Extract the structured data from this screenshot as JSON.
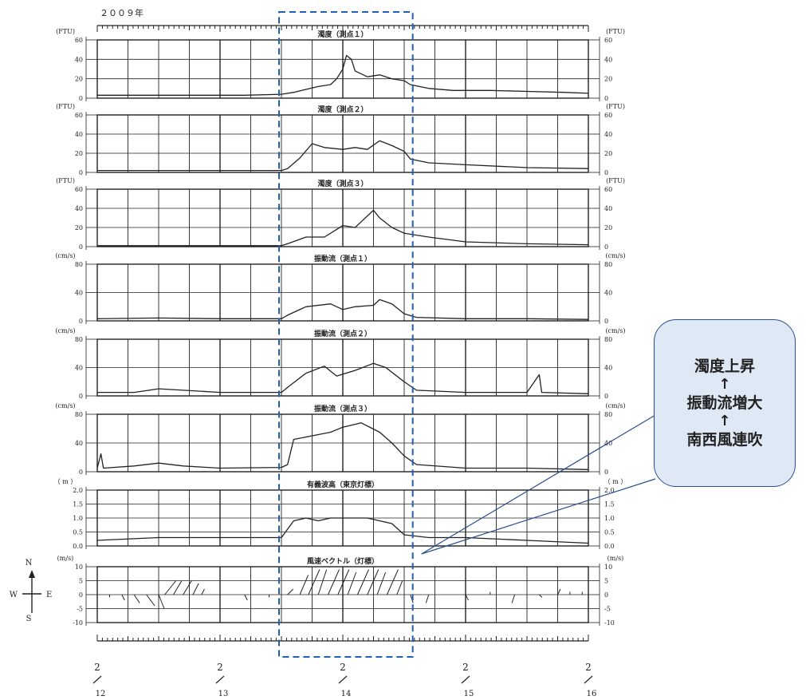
{
  "year_label": "２００９年",
  "chart_data": {
    "type": "line",
    "x_range": [
      0,
      4
    ],
    "x_ticks": [
      {
        "x": 0,
        "month": "2",
        "day": "12"
      },
      {
        "x": 1,
        "month": "2",
        "day": "13"
      },
      {
        "x": 2,
        "month": "2",
        "day": "14"
      },
      {
        "x": 3,
        "month": "2",
        "day": "15"
      },
      {
        "x": 4,
        "month": "2",
        "day": "16"
      }
    ],
    "panels": [
      {
        "title": "濁度（測点１）",
        "unit_left": "(FTU)",
        "unit_right": "(FTU)",
        "ylim": [
          0,
          60
        ],
        "yticks": [
          "0",
          "20",
          "40",
          "60"
        ],
        "series": [
          [
            0,
            3
          ],
          [
            0.3,
            3
          ],
          [
            0.6,
            3
          ],
          [
            0.9,
            3
          ],
          [
            1.2,
            3
          ],
          [
            1.5,
            4
          ],
          [
            1.6,
            6
          ],
          [
            1.8,
            12
          ],
          [
            1.9,
            14
          ],
          [
            1.95,
            20
          ],
          [
            2.0,
            30
          ],
          [
            2.03,
            44
          ],
          [
            2.07,
            40
          ],
          [
            2.1,
            28
          ],
          [
            2.2,
            22
          ],
          [
            2.3,
            24
          ],
          [
            2.4,
            20
          ],
          [
            2.5,
            18
          ],
          [
            2.55,
            14
          ],
          [
            2.7,
            10
          ],
          [
            2.9,
            8
          ],
          [
            3.2,
            8
          ],
          [
            3.5,
            7
          ],
          [
            3.8,
            6
          ],
          [
            4.0,
            5
          ]
        ]
      },
      {
        "title": "濁度（測点２）",
        "unit_left": "(FTU)",
        "unit_right": "(FTU)",
        "ylim": [
          0,
          60
        ],
        "yticks": [
          "0",
          "20",
          "40",
          "60"
        ],
        "series": [
          [
            0,
            2
          ],
          [
            0.5,
            2
          ],
          [
            1.0,
            2
          ],
          [
            1.5,
            2
          ],
          [
            1.55,
            4
          ],
          [
            1.65,
            15
          ],
          [
            1.75,
            30
          ],
          [
            1.85,
            26
          ],
          [
            2.0,
            24
          ],
          [
            2.1,
            26
          ],
          [
            2.2,
            24
          ],
          [
            2.3,
            33
          ],
          [
            2.4,
            28
          ],
          [
            2.5,
            22
          ],
          [
            2.55,
            14
          ],
          [
            2.7,
            10
          ],
          [
            3.0,
            8
          ],
          [
            3.5,
            5
          ],
          [
            4.0,
            4
          ]
        ]
      },
      {
        "title": "濁度（測点３）",
        "unit_left": "(FTU)",
        "unit_right": "(FTU)",
        "ylim": [
          0,
          60
        ],
        "yticks": [
          "0",
          "20",
          "40",
          "60"
        ],
        "series": [
          [
            0,
            1
          ],
          [
            0.5,
            1
          ],
          [
            1.0,
            1
          ],
          [
            1.5,
            1
          ],
          [
            1.55,
            3
          ],
          [
            1.7,
            10
          ],
          [
            1.85,
            10
          ],
          [
            1.95,
            18
          ],
          [
            2.0,
            22
          ],
          [
            2.1,
            20
          ],
          [
            2.15,
            26
          ],
          [
            2.25,
            38
          ],
          [
            2.3,
            30
          ],
          [
            2.4,
            20
          ],
          [
            2.5,
            14
          ],
          [
            2.7,
            10
          ],
          [
            3.0,
            5
          ],
          [
            3.5,
            3
          ],
          [
            4.0,
            2
          ]
        ]
      },
      {
        "title": "振動流（測点１）",
        "unit_left": "(cm/s)",
        "unit_right": "(cm/s)",
        "ylim": [
          0,
          80
        ],
        "yticks": [
          "0",
          "40",
          "80"
        ],
        "series": [
          [
            0,
            3
          ],
          [
            0.5,
            4
          ],
          [
            1.0,
            3
          ],
          [
            1.5,
            3
          ],
          [
            1.55,
            8
          ],
          [
            1.7,
            20
          ],
          [
            1.9,
            24
          ],
          [
            2.0,
            16
          ],
          [
            2.1,
            20
          ],
          [
            2.25,
            22
          ],
          [
            2.3,
            30
          ],
          [
            2.4,
            24
          ],
          [
            2.5,
            10
          ],
          [
            2.6,
            5
          ],
          [
            3.0,
            3
          ],
          [
            3.5,
            3
          ],
          [
            4.0,
            2
          ]
        ]
      },
      {
        "title": "振動流（測点２）",
        "unit_left": "(cm/s)",
        "unit_right": "(cm/s)",
        "ylim": [
          0,
          80
        ],
        "yticks": [
          "0",
          "40",
          "80"
        ],
        "series": [
          [
            0,
            5
          ],
          [
            0.3,
            5
          ],
          [
            0.5,
            10
          ],
          [
            0.7,
            8
          ],
          [
            1.0,
            5
          ],
          [
            1.5,
            5
          ],
          [
            1.55,
            12
          ],
          [
            1.7,
            32
          ],
          [
            1.85,
            42
          ],
          [
            1.95,
            28
          ],
          [
            2.1,
            36
          ],
          [
            2.25,
            46
          ],
          [
            2.35,
            40
          ],
          [
            2.5,
            20
          ],
          [
            2.6,
            8
          ],
          [
            3.0,
            5
          ],
          [
            3.5,
            5
          ],
          [
            3.6,
            30
          ],
          [
            3.62,
            5
          ],
          [
            4.0,
            3
          ]
        ]
      },
      {
        "title": "振動流（測点３）",
        "unit_left": "(cm/s)",
        "unit_right": "(cm/s)",
        "ylim": [
          0,
          80
        ],
        "yticks": [
          "0",
          "40",
          "80"
        ],
        "series": [
          [
            0,
            5
          ],
          [
            0.03,
            25
          ],
          [
            0.05,
            5
          ],
          [
            0.3,
            8
          ],
          [
            0.5,
            12
          ],
          [
            0.7,
            8
          ],
          [
            1.0,
            5
          ],
          [
            1.5,
            6
          ],
          [
            1.55,
            10
          ],
          [
            1.6,
            45
          ],
          [
            1.75,
            50
          ],
          [
            1.9,
            55
          ],
          [
            2.0,
            62
          ],
          [
            2.15,
            68
          ],
          [
            2.3,
            55
          ],
          [
            2.4,
            40
          ],
          [
            2.5,
            22
          ],
          [
            2.6,
            10
          ],
          [
            3.0,
            5
          ],
          [
            3.5,
            5
          ],
          [
            4.0,
            3
          ]
        ]
      },
      {
        "title": "有義波高（東京灯標）",
        "unit_left": "（ m ）",
        "unit_right": "（ m ）",
        "ylim": [
          0.0,
          2.0
        ],
        "yticks": [
          "0.0",
          "0.5",
          "1.0",
          "1.5",
          "2.0"
        ],
        "series": [
          [
            0,
            0.2
          ],
          [
            0.5,
            0.3
          ],
          [
            1.0,
            0.3
          ],
          [
            1.5,
            0.3
          ],
          [
            1.6,
            0.9
          ],
          [
            1.7,
            1.0
          ],
          [
            1.8,
            0.9
          ],
          [
            1.9,
            1.0
          ],
          [
            2.0,
            1.0
          ],
          [
            2.2,
            1.0
          ],
          [
            2.3,
            0.9
          ],
          [
            2.4,
            0.8
          ],
          [
            2.5,
            0.4
          ],
          [
            2.7,
            0.3
          ],
          [
            3.0,
            0.3
          ],
          [
            3.5,
            0.2
          ],
          [
            4.0,
            0.1
          ]
        ]
      }
    ],
    "wind_panel": {
      "title": "風速ベクトル（灯標）",
      "unit_left": "(m/s)",
      "unit_right": "(m/s)",
      "ylim": [
        -10,
        10
      ],
      "yticks": [
        "-10",
        "-5",
        "0",
        "5",
        "10"
      ],
      "vectors": [
        [
          0.1,
          0,
          -1
        ],
        [
          0.2,
          1,
          -2
        ],
        [
          0.3,
          2,
          -3
        ],
        [
          0.4,
          3,
          -4
        ],
        [
          0.5,
          2,
          -5
        ],
        [
          0.55,
          4,
          5
        ],
        [
          0.62,
          3,
          5
        ],
        [
          0.7,
          3,
          5
        ],
        [
          0.78,
          2,
          4
        ],
        [
          0.85,
          1,
          2
        ],
        [
          1.0,
          0,
          -2
        ],
        [
          1.2,
          1,
          -2
        ],
        [
          1.4,
          0,
          -1
        ],
        [
          1.55,
          2,
          2
        ],
        [
          1.65,
          3,
          7
        ],
        [
          1.72,
          4,
          9
        ],
        [
          1.8,
          3,
          9
        ],
        [
          1.88,
          4,
          9
        ],
        [
          1.96,
          4,
          9
        ],
        [
          2.04,
          3,
          8
        ],
        [
          2.12,
          4,
          9
        ],
        [
          2.2,
          4,
          9
        ],
        [
          2.28,
          3,
          8
        ],
        [
          2.36,
          4,
          9
        ],
        [
          2.44,
          2,
          5
        ],
        [
          2.55,
          1,
          -3
        ],
        [
          2.7,
          -1,
          -3
        ],
        [
          3.0,
          1,
          -2
        ],
        [
          3.2,
          0,
          1
        ],
        [
          3.4,
          -1,
          -3
        ],
        [
          3.6,
          1,
          -1
        ],
        [
          3.75,
          1,
          2
        ],
        [
          3.85,
          0,
          1
        ],
        [
          3.95,
          0,
          1
        ]
      ]
    },
    "compass": {
      "north": "N",
      "south": "S",
      "west": "W",
      "east": "E"
    },
    "highlight_range": [
      1.5,
      2.55
    ]
  },
  "callout": {
    "line1": "濁度上昇",
    "arrow1": "↑",
    "line2": "振動流増大",
    "arrow2": "↑",
    "line3": "南西風連吹"
  },
  "colors": {
    "line": "#222222",
    "highlight": "#1f5fb5",
    "callout_border": "#2a4f8f",
    "callout_fill": "#dfe8f5"
  }
}
